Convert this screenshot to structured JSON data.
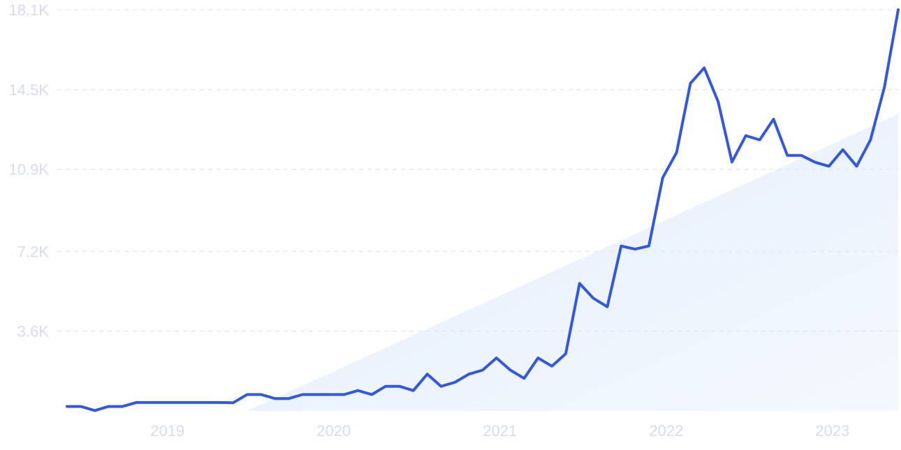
{
  "chart_data": {
    "type": "line",
    "title": "",
    "xlabel": "",
    "ylabel": "",
    "ylim": [
      0,
      18100
    ],
    "y_ticks": [
      3600,
      7200,
      10900,
      14500,
      18100
    ],
    "y_tick_labels": [
      "3.6K",
      "7.2K",
      "10.9K",
      "14.5K",
      "18.1K"
    ],
    "x_ticks": [
      "2019-01",
      "2020-01",
      "2021-01",
      "2022-01",
      "2023-01"
    ],
    "x_tick_labels": [
      "2019",
      "2020",
      "2021",
      "2022",
      "2023"
    ],
    "grid": "horizontal dashed",
    "colors": {
      "line": "#3358e0",
      "trend_fill": "#e8f1fc",
      "tick_label": "#d5dcf0",
      "grid": "#dfe5f2"
    },
    "trend_area": {
      "x_start": "2019-07",
      "y_start": 0,
      "x_end": "2023-06",
      "y_end": 13400
    },
    "series": [
      {
        "x": [
          "2018-06",
          "2018-07",
          "2018-08",
          "2018-09",
          "2018-10",
          "2018-11",
          "2018-12",
          "2019-01",
          "2019-02",
          "2019-03",
          "2019-04",
          "2019-05",
          "2019-06",
          "2019-07",
          "2019-08",
          "2019-09",
          "2019-10",
          "2019-11",
          "2019-12",
          "2020-01",
          "2020-02",
          "2020-03",
          "2020-04",
          "2020-05",
          "2020-06",
          "2020-07",
          "2020-08",
          "2020-09",
          "2020-10",
          "2020-11",
          "2020-12",
          "2021-01",
          "2021-02",
          "2021-03",
          "2021-04",
          "2021-05",
          "2021-06",
          "2021-07",
          "2021-08",
          "2021-09",
          "2021-10",
          "2021-11",
          "2021-12",
          "2022-01",
          "2022-02",
          "2022-03",
          "2022-04",
          "2022-05",
          "2022-06",
          "2022-07",
          "2022-08",
          "2022-09",
          "2022-10",
          "2022-11",
          "2022-12",
          "2023-01",
          "2023-02",
          "2023-03",
          "2023-04",
          "2023-05",
          "2023-06"
        ],
        "y": [
          200,
          200,
          20,
          200,
          200,
          380,
          380,
          380,
          380,
          380,
          380,
          380,
          370,
          740,
          740,
          560,
          560,
          740,
          740,
          740,
          740,
          920,
          740,
          1110,
          1110,
          920,
          1660,
          1110,
          1290,
          1660,
          1840,
          2390,
          1840,
          1470,
          2390,
          2020,
          2580,
          5750,
          5080,
          4700,
          7440,
          7300,
          7440,
          10520,
          11660,
          14780,
          15480,
          13950,
          11230,
          12420,
          12230,
          13160,
          11530,
          11530,
          11220,
          11040,
          11790,
          11040,
          12230,
          14600,
          18100
        ]
      }
    ]
  }
}
